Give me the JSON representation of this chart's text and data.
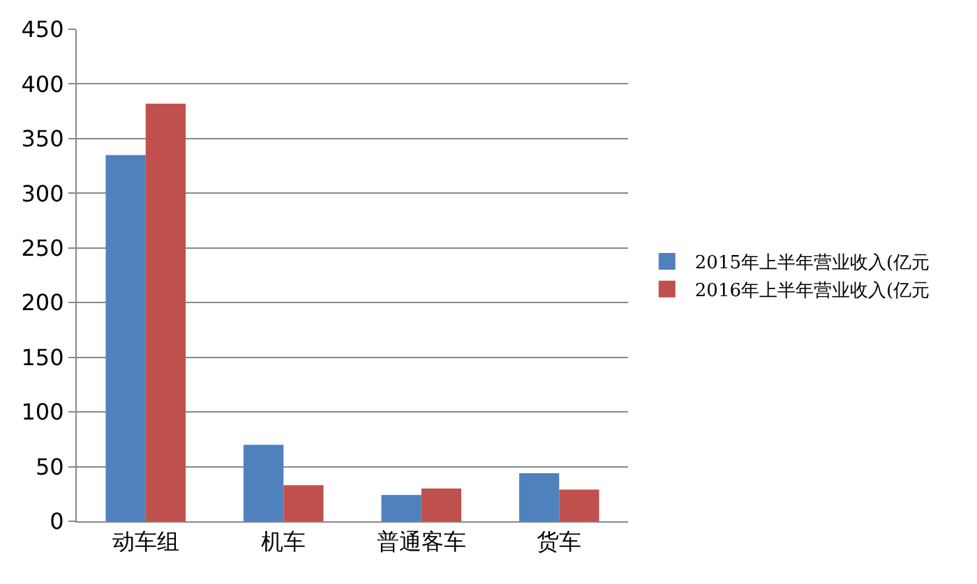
{
  "chart_data": {
    "type": "bar",
    "categories": [
      "动车组",
      "机车",
      "普通客车",
      "货车"
    ],
    "series": [
      {
        "name": "2015年上半年营业收入(亿元",
        "color": "#4f81bd",
        "values": [
          335,
          70,
          24,
          44
        ]
      },
      {
        "name": "2016年上半年营业收入(亿元",
        "color": "#c0504d",
        "values": [
          382,
          33,
          30,
          29
        ]
      }
    ],
    "ylim": [
      0,
      450
    ],
    "yticks": [
      0,
      50,
      100,
      150,
      200,
      250,
      300,
      350,
      400,
      450
    ],
    "grid": "y",
    "legend": "right"
  }
}
